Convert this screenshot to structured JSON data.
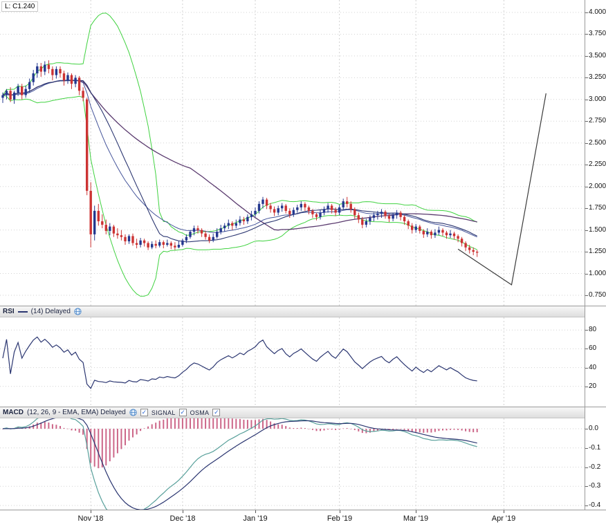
{
  "price_panel": {
    "last_label": "L: C1.240"
  },
  "rsi_header": {
    "title": "RSI",
    "params": "(14) Delayed"
  },
  "macd_header": {
    "title": "MACD",
    "params": "(12, 26, 9 - EMA, EMA) Delayed",
    "signal_label": "SIGNAL",
    "osma_label": "OSMA",
    "check_glyph": "✓"
  },
  "colors": {
    "candle_up": "#24388f",
    "candle_down": "#cc3333",
    "bollinger": "#3fd23f",
    "ma_fast": "#2a3570",
    "ma_fast2": "#44549a",
    "ma_slow": "#5a3a6e",
    "rsi_line": "#2a3570",
    "macd_line": "#58a09b",
    "signal_line": "#2a3570",
    "osma_bar": "#cc6688",
    "trend_line": "#3a3a3a",
    "grid": "#d2d2d2",
    "axis_border": "#9a9a9a"
  },
  "chart_data": [
    {
      "type": "candlestick",
      "name": "price",
      "last_close": 1.24,
      "ylim": [
        0.63,
        4.14
      ],
      "y_axis": {
        "ticks": [
          {
            "label": "4.000",
            "value": 4.0
          },
          {
            "label": "3.750",
            "value": 3.75
          },
          {
            "label": "3.500",
            "value": 3.5
          },
          {
            "label": "3.250",
            "value": 3.25
          },
          {
            "label": "3.000",
            "value": 3.0
          },
          {
            "label": "2.750",
            "value": 2.75
          },
          {
            "label": "2.500",
            "value": 2.5
          },
          {
            "label": "2.250",
            "value": 2.25
          },
          {
            "label": "2.000",
            "value": 2.0
          },
          {
            "label": "1.750",
            "value": 1.75
          },
          {
            "label": "1.500",
            "value": 1.5
          },
          {
            "label": "1.250",
            "value": 1.25
          },
          {
            "label": "1.000",
            "value": 1.0
          },
          {
            "label": "0.750",
            "value": 0.75
          }
        ]
      },
      "x_axis": {
        "ticks": [
          {
            "label": "Nov '18",
            "index": 23
          },
          {
            "label": "Dec '18",
            "index": 47
          },
          {
            "label": "Jan '19",
            "index": 66
          },
          {
            "label": "Feb '19",
            "index": 88
          },
          {
            "label": "Mar '19",
            "index": 108
          },
          {
            "label": "Apr '19",
            "index": 131
          }
        ]
      },
      "overlays": [
        "bollinger-bands",
        "moving-average-fast",
        "moving-average-slow"
      ],
      "drawing": {
        "type": "trendline",
        "points_index_price": [
          [
            119,
            1.28
          ],
          [
            133,
            0.87
          ],
          [
            142,
            3.07
          ]
        ]
      },
      "candles_ohlc": [
        [
          3.02,
          3.08,
          2.96,
          3.05
        ],
        [
          3.05,
          3.12,
          3.0,
          3.1
        ],
        [
          3.1,
          3.14,
          2.97,
          3.0
        ],
        [
          3.0,
          3.1,
          2.95,
          3.08
        ],
        [
          3.08,
          3.18,
          3.04,
          3.15
        ],
        [
          3.15,
          3.18,
          3.0,
          3.05
        ],
        [
          3.05,
          3.16,
          3.02,
          3.12
        ],
        [
          3.12,
          3.24,
          3.08,
          3.2
        ],
        [
          3.2,
          3.34,
          3.16,
          3.3
        ],
        [
          3.3,
          3.42,
          3.25,
          3.38
        ],
        [
          3.38,
          3.42,
          3.26,
          3.32
        ],
        [
          3.32,
          3.44,
          3.28,
          3.4
        ],
        [
          3.4,
          3.45,
          3.3,
          3.35
        ],
        [
          3.35,
          3.38,
          3.22,
          3.28
        ],
        [
          3.28,
          3.38,
          3.24,
          3.35
        ],
        [
          3.35,
          3.38,
          3.25,
          3.3
        ],
        [
          3.3,
          3.33,
          3.16,
          3.22
        ],
        [
          3.22,
          3.31,
          3.18,
          3.28
        ],
        [
          3.28,
          3.3,
          3.12,
          3.18
        ],
        [
          3.18,
          3.28,
          3.14,
          3.25
        ],
        [
          3.25,
          3.27,
          3.05,
          3.1
        ],
        [
          3.1,
          3.14,
          2.98,
          3.02
        ],
        [
          3.0,
          3.02,
          1.9,
          1.95
        ],
        [
          1.95,
          2.05,
          1.3,
          1.45
        ],
        [
          1.45,
          1.78,
          1.38,
          1.72
        ],
        [
          1.72,
          1.8,
          1.55,
          1.6
        ],
        [
          1.6,
          1.68,
          1.52,
          1.56
        ],
        [
          1.56,
          1.62,
          1.45,
          1.49
        ],
        [
          1.49,
          1.58,
          1.44,
          1.54
        ],
        [
          1.54,
          1.56,
          1.42,
          1.46
        ],
        [
          1.46,
          1.52,
          1.4,
          1.44
        ],
        [
          1.44,
          1.5,
          1.38,
          1.42
        ],
        [
          1.42,
          1.45,
          1.33,
          1.37
        ],
        [
          1.37,
          1.45,
          1.34,
          1.43
        ],
        [
          1.43,
          1.46,
          1.32,
          1.35
        ],
        [
          1.35,
          1.4,
          1.29,
          1.33
        ],
        [
          1.33,
          1.41,
          1.3,
          1.38
        ],
        [
          1.38,
          1.4,
          1.31,
          1.35
        ],
        [
          1.35,
          1.37,
          1.27,
          1.3
        ],
        [
          1.3,
          1.37,
          1.28,
          1.34
        ],
        [
          1.34,
          1.38,
          1.29,
          1.32
        ],
        [
          1.32,
          1.39,
          1.3,
          1.36
        ],
        [
          1.36,
          1.38,
          1.29,
          1.33
        ],
        [
          1.33,
          1.39,
          1.31,
          1.35
        ],
        [
          1.35,
          1.37,
          1.28,
          1.32
        ],
        [
          1.32,
          1.36,
          1.27,
          1.3
        ],
        [
          1.3,
          1.37,
          1.29,
          1.33
        ],
        [
          1.33,
          1.4,
          1.31,
          1.38
        ],
        [
          1.38,
          1.45,
          1.35,
          1.42
        ],
        [
          1.42,
          1.5,
          1.4,
          1.48
        ],
        [
          1.48,
          1.55,
          1.44,
          1.52
        ],
        [
          1.52,
          1.55,
          1.46,
          1.5
        ],
        [
          1.5,
          1.52,
          1.42,
          1.46
        ],
        [
          1.46,
          1.49,
          1.39,
          1.42
        ],
        [
          1.42,
          1.45,
          1.35,
          1.38
        ],
        [
          1.38,
          1.46,
          1.36,
          1.42
        ],
        [
          1.42,
          1.52,
          1.4,
          1.48
        ],
        [
          1.48,
          1.56,
          1.45,
          1.52
        ],
        [
          1.52,
          1.58,
          1.48,
          1.55
        ],
        [
          1.55,
          1.62,
          1.51,
          1.58
        ],
        [
          1.58,
          1.6,
          1.5,
          1.55
        ],
        [
          1.55,
          1.62,
          1.52,
          1.58
        ],
        [
          1.58,
          1.66,
          1.55,
          1.62
        ],
        [
          1.62,
          1.65,
          1.56,
          1.6
        ],
        [
          1.6,
          1.68,
          1.57,
          1.65
        ],
        [
          1.65,
          1.72,
          1.61,
          1.68
        ],
        [
          1.68,
          1.76,
          1.65,
          1.72
        ],
        [
          1.72,
          1.83,
          1.69,
          1.8
        ],
        [
          1.8,
          1.88,
          1.75,
          1.85
        ],
        [
          1.85,
          1.87,
          1.74,
          1.78
        ],
        [
          1.78,
          1.81,
          1.7,
          1.74
        ],
        [
          1.74,
          1.77,
          1.66,
          1.7
        ],
        [
          1.7,
          1.78,
          1.67,
          1.75
        ],
        [
          1.75,
          1.81,
          1.71,
          1.78
        ],
        [
          1.78,
          1.8,
          1.69,
          1.72
        ],
        [
          1.72,
          1.75,
          1.64,
          1.68
        ],
        [
          1.68,
          1.76,
          1.65,
          1.73
        ],
        [
          1.73,
          1.79,
          1.7,
          1.76
        ],
        [
          1.76,
          1.83,
          1.72,
          1.8
        ],
        [
          1.8,
          1.82,
          1.72,
          1.76
        ],
        [
          1.76,
          1.78,
          1.68,
          1.72
        ],
        [
          1.72,
          1.74,
          1.64,
          1.68
        ],
        [
          1.68,
          1.7,
          1.61,
          1.65
        ],
        [
          1.65,
          1.73,
          1.62,
          1.7
        ],
        [
          1.7,
          1.77,
          1.67,
          1.74
        ],
        [
          1.74,
          1.81,
          1.7,
          1.78
        ],
        [
          1.78,
          1.8,
          1.69,
          1.73
        ],
        [
          1.73,
          1.76,
          1.66,
          1.7
        ],
        [
          1.7,
          1.79,
          1.67,
          1.76
        ],
        [
          1.76,
          1.86,
          1.73,
          1.83
        ],
        [
          1.83,
          1.88,
          1.76,
          1.8
        ],
        [
          1.8,
          1.83,
          1.7,
          1.74
        ],
        [
          1.74,
          1.76,
          1.63,
          1.67
        ],
        [
          1.67,
          1.7,
          1.58,
          1.62
        ],
        [
          1.62,
          1.65,
          1.52,
          1.56
        ],
        [
          1.56,
          1.63,
          1.53,
          1.6
        ],
        [
          1.6,
          1.67,
          1.56,
          1.64
        ],
        [
          1.64,
          1.7,
          1.6,
          1.67
        ],
        [
          1.67,
          1.72,
          1.62,
          1.69
        ],
        [
          1.69,
          1.74,
          1.64,
          1.71
        ],
        [
          1.71,
          1.73,
          1.63,
          1.66
        ],
        [
          1.66,
          1.69,
          1.59,
          1.63
        ],
        [
          1.63,
          1.7,
          1.6,
          1.67
        ],
        [
          1.67,
          1.73,
          1.63,
          1.7
        ],
        [
          1.7,
          1.72,
          1.61,
          1.65
        ],
        [
          1.65,
          1.67,
          1.56,
          1.6
        ],
        [
          1.6,
          1.62,
          1.51,
          1.55
        ],
        [
          1.55,
          1.58,
          1.46,
          1.5
        ],
        [
          1.5,
          1.57,
          1.47,
          1.54
        ],
        [
          1.54,
          1.56,
          1.46,
          1.49
        ],
        [
          1.49,
          1.51,
          1.41,
          1.45
        ],
        [
          1.45,
          1.52,
          1.42,
          1.48
        ],
        [
          1.48,
          1.5,
          1.4,
          1.44
        ],
        [
          1.44,
          1.51,
          1.41,
          1.47
        ],
        [
          1.47,
          1.54,
          1.44,
          1.5
        ],
        [
          1.5,
          1.52,
          1.43,
          1.47
        ],
        [
          1.47,
          1.49,
          1.4,
          1.44
        ],
        [
          1.44,
          1.5,
          1.41,
          1.46
        ],
        [
          1.46,
          1.48,
          1.39,
          1.43
        ],
        [
          1.43,
          1.45,
          1.36,
          1.4
        ],
        [
          1.4,
          1.42,
          1.31,
          1.35
        ],
        [
          1.35,
          1.37,
          1.26,
          1.3
        ],
        [
          1.3,
          1.33,
          1.23,
          1.27
        ],
        [
          1.27,
          1.3,
          1.21,
          1.25
        ],
        [
          1.25,
          1.27,
          1.19,
          1.24
        ]
      ]
    },
    {
      "type": "line",
      "name": "RSI",
      "period": 14,
      "range": [
        0,
        100
      ],
      "y_axis": {
        "ticks": [
          {
            "label": "80",
            "value": 80
          },
          {
            "label": "60",
            "value": 60
          },
          {
            "label": "40",
            "value": 40
          },
          {
            "label": "20",
            "value": 20
          }
        ]
      }
    },
    {
      "type": "macd",
      "name": "MACD",
      "fast": 12,
      "slow": 26,
      "signal": 9,
      "ylim": [
        -0.42,
        0.05
      ],
      "y_axis": {
        "ticks": [
          {
            "label": "0.0",
            "value": 0
          },
          {
            "label": "-0.1",
            "value": -0.1
          },
          {
            "label": "-0.2",
            "value": -0.2
          },
          {
            "label": "-0.3",
            "value": -0.3
          },
          {
            "label": "-0.4",
            "value": -0.4
          }
        ]
      }
    }
  ]
}
